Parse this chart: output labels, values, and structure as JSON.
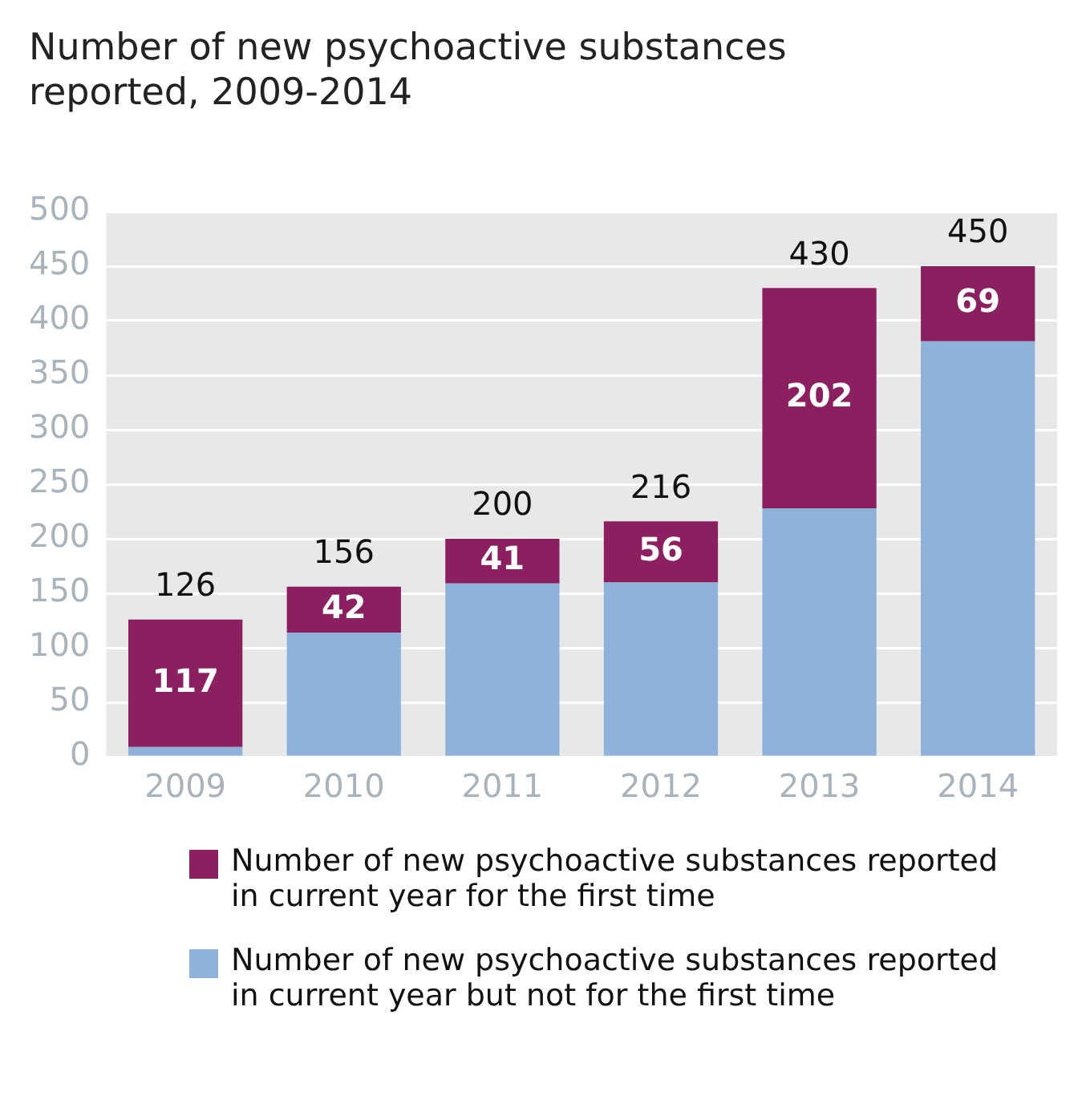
{
  "chart_data": {
    "type": "bar",
    "title": "Number of new psychoactive substances reported, 2009-2014",
    "categories": [
      "2009",
      "2010",
      "2011",
      "2012",
      "2013",
      "2014"
    ],
    "stacked": true,
    "ylim": [
      0,
      500
    ],
    "yticks": [
      0,
      50,
      100,
      150,
      200,
      250,
      300,
      350,
      400,
      450,
      500
    ],
    "grid": "y",
    "legend": "bottom",
    "series": [
      {
        "name": "Number of new psychoactive substances reported in current year but not for the first time",
        "color": "#8db3d8",
        "values": [
          9,
          114,
          159,
          160,
          228,
          381
        ]
      },
      {
        "name": "Number of new psychoactive substances reported in current year for the first time",
        "color": "#8b1f5f",
        "values": [
          117,
          42,
          41,
          56,
          202,
          69
        ],
        "value_labels": [
          "117",
          "42",
          "41",
          "56",
          "202",
          "69"
        ]
      }
    ],
    "totals": [
      "126",
      "156",
      "200",
      "216",
      "430",
      "450"
    ]
  }
}
